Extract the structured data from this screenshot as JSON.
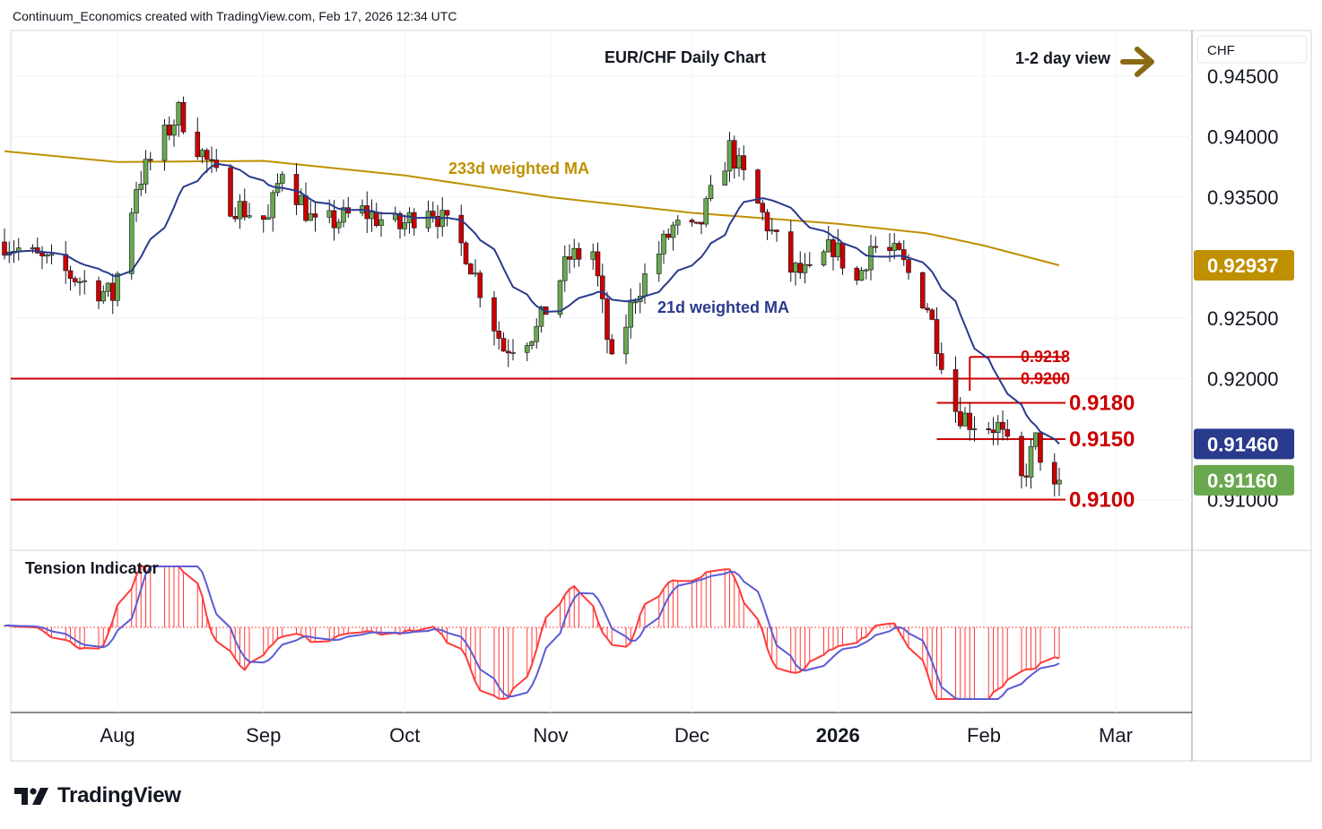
{
  "header": {
    "attribution": "Continuum_Economics created with TradingView.com, Feb 17, 2026 12:34 UTC"
  },
  "brand": {
    "name": "TradingView",
    "logo_icon": "tradingview-logo-icon"
  },
  "chart": {
    "title": "EUR/CHF Daily Chart",
    "view_label": "1-2 day view",
    "view_icon": "right-arrow-icon",
    "currency": "CHF",
    "ma_labels": {
      "ma233": "233d weighted MA",
      "ma21": "21d weighted MA"
    },
    "indicator_label": "Tension Indicator",
    "x_ticks": [
      "Aug",
      "Sep",
      "Oct",
      "Nov",
      "Dec",
      "2026",
      "Feb",
      "Mar"
    ],
    "y_ticks": [
      "0.94500",
      "0.94000",
      "0.93500",
      "0.92500",
      "0.92000",
      "0.91000"
    ],
    "price_tags": [
      {
        "label": "0.92937",
        "value": 0.92937,
        "color": "#bf9000",
        "series": "233d weighted MA"
      },
      {
        "label": "0.91460",
        "value": 0.9146,
        "color": "#2a3a8c",
        "series": "21d weighted MA"
      },
      {
        "label": "0.91160",
        "value": 0.9116,
        "color": "#6aa84f",
        "series": "last price"
      }
    ],
    "levels": [
      {
        "label": "0.9218",
        "value": 0.9218,
        "bold": false
      },
      {
        "label": "0.9200",
        "value": 0.92,
        "bold": false
      },
      {
        "label": "0.9180",
        "value": 0.918,
        "bold": true
      },
      {
        "label": "0.9150",
        "value": 0.915,
        "bold": true
      },
      {
        "label": "0.9100",
        "value": 0.91,
        "bold": true
      }
    ],
    "colors": {
      "up": "#6aa84f",
      "down": "#cc0000",
      "ma21": "#2a3a8c",
      "ma233": "#bf9000",
      "level": "#cc0000",
      "tension": "#ff3b3b",
      "signal": "#5b5bd6"
    }
  },
  "chart_data": {
    "type": "candlestick",
    "title": "EUR/CHF Daily Chart",
    "ylabel": "CHF",
    "ylim": [
      0.9062,
      0.9495
    ],
    "x_range": [
      "2025-07-08",
      "2026-03-09"
    ],
    "keypoints": [
      [
        "2025-07-08",
        0.9313
      ],
      [
        "2025-07-31",
        0.9268
      ],
      [
        "2025-08-05",
        0.936
      ],
      [
        "2025-08-14",
        0.942
      ],
      [
        "2025-08-25",
        0.9345
      ],
      [
        "2025-09-02",
        0.933
      ],
      [
        "2025-09-05",
        0.9375
      ],
      [
        "2025-09-12",
        0.9325
      ],
      [
        "2025-09-22",
        0.9338
      ],
      [
        "2025-09-30",
        0.9325
      ],
      [
        "2025-10-06",
        0.9345
      ],
      [
        "2025-10-14",
        0.9305
      ],
      [
        "2025-10-22",
        0.9225
      ],
      [
        "2025-10-29",
        0.924
      ],
      [
        "2025-11-05",
        0.93
      ],
      [
        "2025-11-10",
        0.9305
      ],
      [
        "2025-11-14",
        0.921
      ],
      [
        "2025-11-19",
        0.927
      ],
      [
        "2025-11-27",
        0.9325
      ],
      [
        "2025-12-02",
        0.932
      ],
      [
        "2025-12-09",
        0.939
      ],
      [
        "2025-12-16",
        0.9335
      ],
      [
        "2025-12-22",
        0.929
      ],
      [
        "2025-12-26",
        0.9285
      ],
      [
        "2025-12-31",
        0.931
      ],
      [
        "2026-01-05",
        0.928
      ],
      [
        "2026-01-08",
        0.931
      ],
      [
        "2026-01-14",
        0.93
      ],
      [
        "2026-01-20",
        0.926
      ],
      [
        "2026-01-26",
        0.9175
      ],
      [
        "2026-01-29",
        0.9165
      ],
      [
        "2026-02-04",
        0.916
      ],
      [
        "2026-02-09",
        0.9115
      ],
      [
        "2026-02-12",
        0.9148
      ],
      [
        "2026-02-16",
        0.9106
      ],
      [
        "2026-02-17",
        0.9116
      ]
    ],
    "series": [
      {
        "name": "21d weighted MA",
        "last": 0.9146
      },
      {
        "name": "233d weighted MA",
        "last": 0.92937
      }
    ],
    "levels": [
      0.9218,
      0.92,
      0.918,
      0.915,
      0.91
    ],
    "last_close": 0.9116,
    "indicator": {
      "name": "Tension Indicator",
      "type": "oscillator-histogram"
    }
  }
}
